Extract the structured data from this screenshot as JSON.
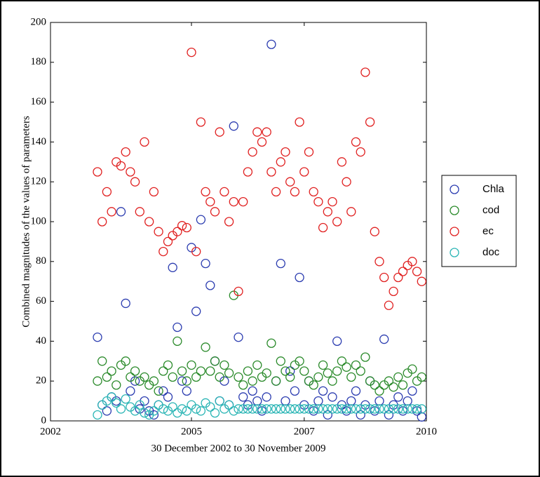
{
  "chart_data": {
    "type": "scatter",
    "ylabel": "Combined magnitudes of the values of parameters",
    "xlabel": "30 December 2002 to 30 November 2009",
    "xlim": [
      2002,
      2010
    ],
    "ylim": [
      0,
      200
    ],
    "xticks": [
      2002,
      2005,
      {
        "value": 2007.4,
        "label": "2007"
      },
      2010
    ],
    "yticks": [
      0,
      20,
      40,
      60,
      80,
      100,
      120,
      140,
      160,
      180,
      200
    ],
    "grid": false,
    "legend": "right",
    "x": [
      2003.0,
      2003.1,
      2003.2,
      2003.3,
      2003.4,
      2003.5,
      2003.6,
      2003.7,
      2003.8,
      2003.9,
      2004.0,
      2004.1,
      2004.2,
      2004.3,
      2004.4,
      2004.5,
      2004.6,
      2004.7,
      2004.8,
      2004.9,
      2005.0,
      2005.1,
      2005.2,
      2005.3,
      2005.4,
      2005.5,
      2005.6,
      2005.7,
      2005.8,
      2005.9,
      2006.0,
      2006.1,
      2006.2,
      2006.3,
      2006.4,
      2006.5,
      2006.6,
      2006.7,
      2006.8,
      2006.9,
      2007.0,
      2007.1,
      2007.2,
      2007.3,
      2007.4,
      2007.5,
      2007.6,
      2007.7,
      2007.8,
      2007.9,
      2008.0,
      2008.1,
      2008.2,
      2008.3,
      2008.4,
      2008.5,
      2008.6,
      2008.7,
      2008.8,
      2008.9,
      2009.0,
      2009.1,
      2009.2,
      2009.3,
      2009.4,
      2009.5,
      2009.6,
      2009.7,
      2009.8,
      2009.9
    ],
    "series": [
      {
        "name": "Chla",
        "color": "#2b3cb0",
        "values": [
          42,
          8,
          5,
          12,
          10,
          105,
          59,
          15,
          20,
          6,
          10,
          5,
          3,
          8,
          15,
          12,
          77,
          47,
          20,
          15,
          87,
          55,
          101,
          79,
          68,
          30,
          10,
          20,
          8,
          148,
          42,
          12,
          8,
          15,
          10,
          5,
          12,
          189,
          20,
          79,
          10,
          25,
          15,
          72,
          8,
          20,
          5,
          10,
          15,
          3,
          12,
          40,
          8,
          5,
          10,
          15,
          3,
          8,
          20,
          5,
          10,
          41,
          3,
          8,
          12,
          5,
          10,
          15,
          5,
          2
        ]
      },
      {
        "name": "cod",
        "color": "#2a8a2a",
        "values": [
          20,
          30,
          22,
          25,
          18,
          28,
          30,
          22,
          25,
          20,
          22,
          18,
          20,
          15,
          25,
          28,
          22,
          40,
          25,
          20,
          28,
          22,
          25,
          37,
          25,
          30,
          22,
          28,
          24,
          63,
          22,
          18,
          25,
          20,
          28,
          22,
          24,
          39,
          20,
          30,
          25,
          22,
          28,
          30,
          25,
          20,
          18,
          22,
          28,
          24,
          20,
          25,
          30,
          27,
          22,
          28,
          25,
          32,
          20,
          18,
          15,
          18,
          20,
          17,
          22,
          18,
          24,
          26,
          20,
          22
        ]
      },
      {
        "name": "ec",
        "color": "#e02020",
        "values": [
          125,
          100,
          115,
          105,
          130,
          128,
          135,
          125,
          120,
          105,
          140,
          100,
          115,
          95,
          85,
          90,
          93,
          95,
          98,
          97,
          185,
          85,
          150,
          115,
          110,
          105,
          145,
          115,
          100,
          110,
          65,
          110,
          125,
          135,
          145,
          140,
          145,
          125,
          115,
          130,
          135,
          120,
          115,
          150,
          125,
          135,
          115,
          110,
          97,
          105,
          110,
          100,
          130,
          120,
          105,
          140,
          135,
          175,
          150,
          95,
          80,
          72,
          58,
          65,
          72,
          75,
          78,
          80,
          75,
          70
        ]
      },
      {
        "name": "doc",
        "color": "#2ab5b5",
        "values": [
          3,
          8,
          10,
          12,
          9,
          6,
          11,
          7,
          5,
          8,
          4,
          3,
          5,
          8,
          6,
          5,
          7,
          4,
          6,
          5,
          8,
          6,
          5,
          9,
          7,
          4,
          10,
          6,
          8,
          5,
          6,
          6,
          6,
          6,
          6,
          6,
          6,
          6,
          6,
          6,
          6,
          6,
          6,
          6,
          6,
          6,
          6,
          6,
          6,
          6,
          6,
          6,
          6,
          6,
          6,
          6,
          6,
          6,
          6,
          6,
          6,
          6,
          6,
          6,
          6,
          6,
          6,
          6,
          6,
          6
        ]
      }
    ]
  }
}
